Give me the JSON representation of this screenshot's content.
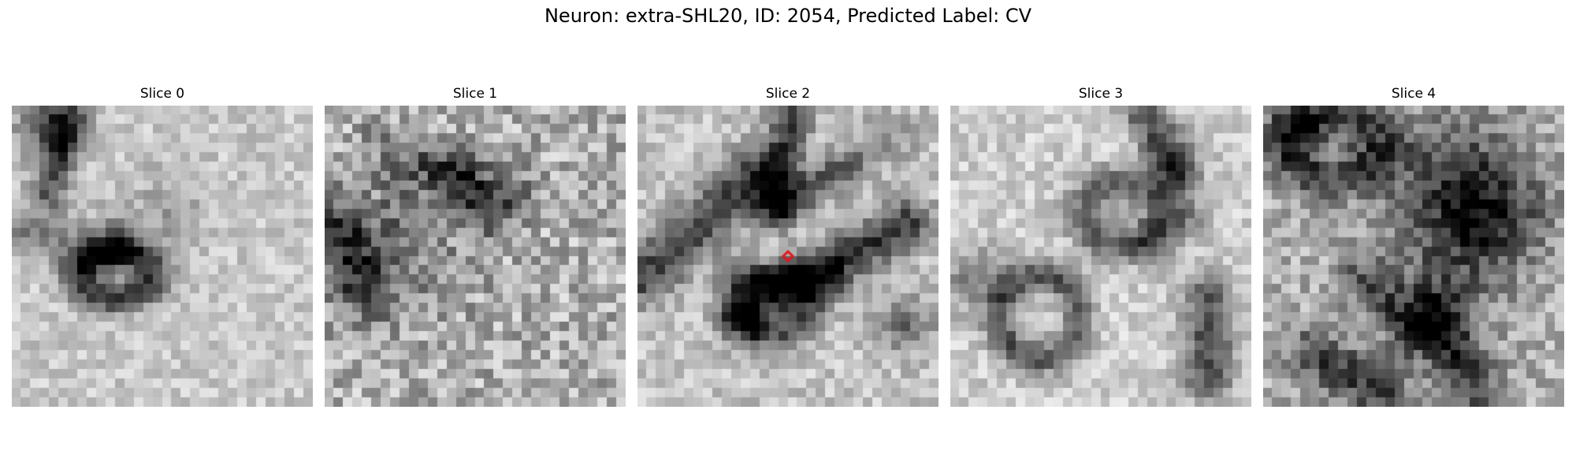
{
  "figure": {
    "title": "Neuron: extra-SHL20, ID: 2054, Predicted Label: CV",
    "marker_color": "#e8141c",
    "colormap": "grayscale"
  },
  "slices": [
    {
      "title": "Slice 0",
      "marker": false
    },
    {
      "title": "Slice 1",
      "marker": false
    },
    {
      "title": "Slice 2",
      "marker": true
    },
    {
      "title": "Slice 3",
      "marker": false
    },
    {
      "title": "Slice 4",
      "marker": false
    }
  ]
}
